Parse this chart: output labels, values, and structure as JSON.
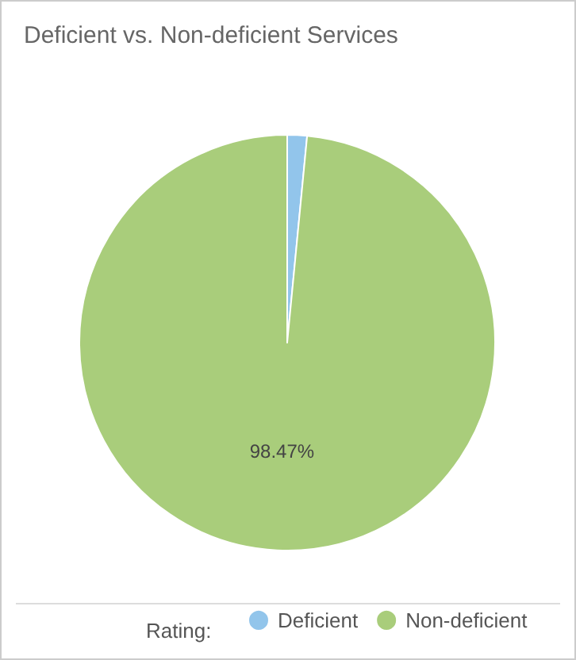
{
  "chart_data": {
    "type": "pie",
    "title": "Deficient vs. Non-deficient Services",
    "categories": [
      "Deficient",
      "Non-deficient"
    ],
    "values": [
      1.53,
      98.47
    ],
    "colors": [
      "#92c5eb",
      "#a9cd7b"
    ],
    "value_labels": [
      null,
      "98.47%"
    ],
    "legend": "bottom",
    "legend_title": "Rating:"
  }
}
